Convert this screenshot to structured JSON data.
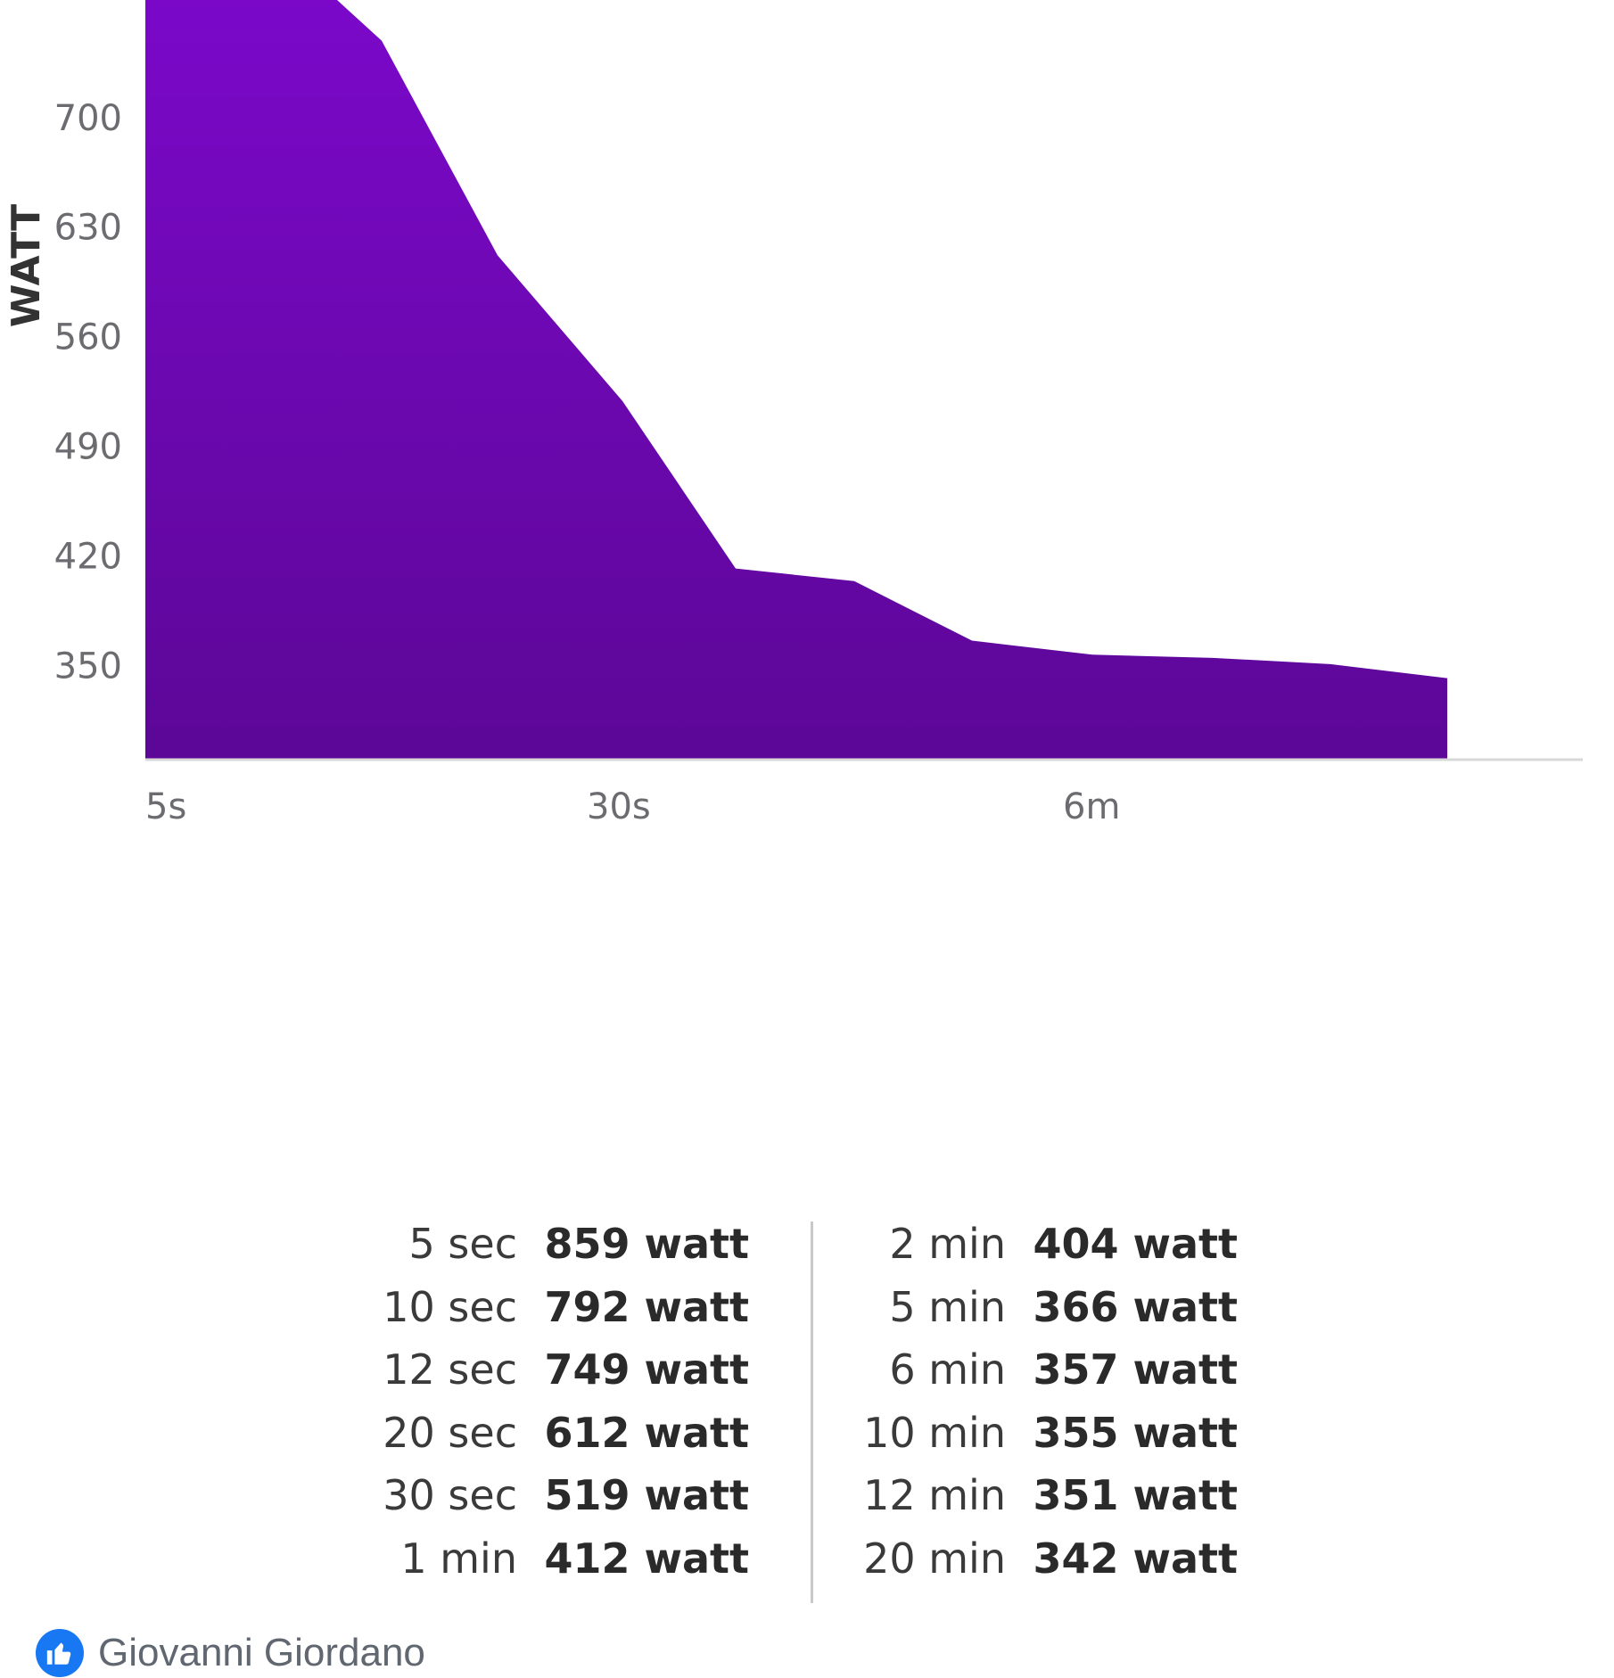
{
  "chart_data": {
    "type": "area",
    "ylabel": "WATT",
    "xlabel": "",
    "y_ticks": [
      "700",
      "630",
      "560",
      "490",
      "420",
      "350"
    ],
    "x_ticks": [
      "5s",
      "30s",
      "6m"
    ],
    "ylim": [
      290,
      775
    ],
    "x": [
      0,
      1,
      2,
      3,
      4,
      5,
      6,
      7,
      8,
      9,
      10,
      11
    ],
    "values": [
      859,
      792,
      749,
      612,
      519,
      412,
      404,
      366,
      357,
      355,
      351,
      342
    ],
    "fill_color_top": "#7b08c9",
    "fill_color_bottom": "#5c0797",
    "grid": false
  },
  "stats": {
    "left": [
      {
        "duration": "5 sec",
        "power": "859 watt"
      },
      {
        "duration": "10 sec",
        "power": "792 watt"
      },
      {
        "duration": "12 sec",
        "power": "749 watt"
      },
      {
        "duration": "20 sec",
        "power": "612 watt"
      },
      {
        "duration": "30 sec",
        "power": "519 watt"
      },
      {
        "duration": "1 min",
        "power": "412 watt"
      }
    ],
    "right": [
      {
        "duration": "2 min",
        "power": "404 watt"
      },
      {
        "duration": "5 min",
        "power": "366 watt"
      },
      {
        "duration": "6 min",
        "power": "357 watt"
      },
      {
        "duration": "10 min",
        "power": "355 watt"
      },
      {
        "duration": "12 min",
        "power": "351 watt"
      },
      {
        "duration": "20 min",
        "power": "342 watt"
      }
    ]
  },
  "footer": {
    "author": "Giovanni Giordano",
    "icon": "thumbs-up-icon",
    "icon_color": "#1877f2"
  }
}
